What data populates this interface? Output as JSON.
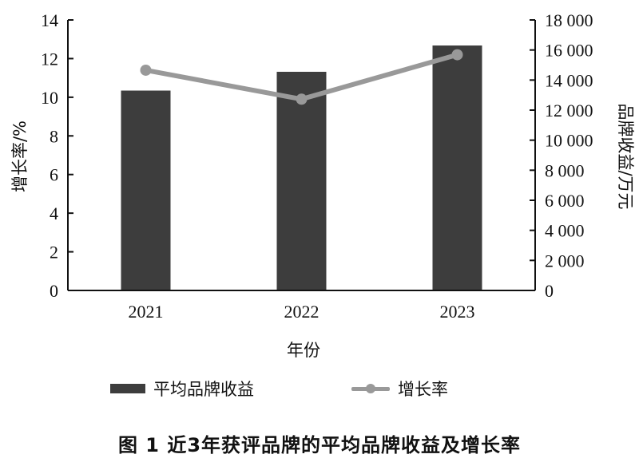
{
  "chart_data": {
    "type": "bar+line",
    "title": "图 1  近3年获评品牌的平均品牌收益及增长率",
    "xlabel": "年份",
    "categories": [
      "2021",
      "2022",
      "2023"
    ],
    "series": [
      {
        "name": "平均品牌收益",
        "type": "bar",
        "axis": "right",
        "unit": "万元",
        "values": [
          13300,
          14550,
          16300
        ],
        "color": "#3d3d3d"
      },
      {
        "name": "增长率",
        "type": "line",
        "axis": "left",
        "unit": "%",
        "values": [
          11.4,
          9.9,
          12.2
        ],
        "color": "#999999"
      }
    ],
    "y_left": {
      "label": "增长率/%",
      "ylim": [
        0,
        14
      ],
      "ticks": [
        "0",
        "2",
        "4",
        "6",
        "8",
        "10",
        "12",
        "14"
      ]
    },
    "y_right": {
      "label": "品牌收益/万元",
      "ylim": [
        0,
        18000
      ],
      "ticks": [
        "0",
        "2 000",
        "4 000",
        "6 000",
        "8 000",
        "10 000",
        "12 000",
        "14 000",
        "16 000",
        "18 000"
      ]
    },
    "grid": false,
    "legend_position": "bottom"
  },
  "legend": {
    "bar_label": "平均品牌收益",
    "line_label": "增长率"
  },
  "caption": "图 1  近3年获评品牌的平均品牌收益及增长率"
}
